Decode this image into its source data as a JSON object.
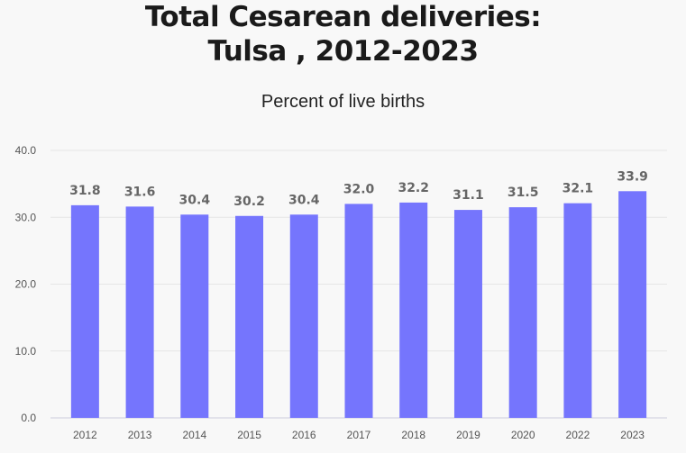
{
  "chart_data": {
    "type": "bar",
    "title_line1": "Total Cesarean deliveries:",
    "title_line2": "Tulsa , 2012-2023",
    "subtitle": "Percent of live births",
    "categories": [
      "2012",
      "2013",
      "2014",
      "2015",
      "2016",
      "2017",
      "2018",
      "2019",
      "2020",
      "2022",
      "2023"
    ],
    "values": [
      31.8,
      31.6,
      30.4,
      30.2,
      30.4,
      32.0,
      32.2,
      31.1,
      31.5,
      32.1,
      33.9
    ],
    "ylim": [
      0,
      40
    ],
    "yticks": [
      "0.0",
      "10.0",
      "20.0",
      "30.0",
      "40.0"
    ],
    "grid": true,
    "bar_color": "#7575fd",
    "label_color": "#666666"
  }
}
